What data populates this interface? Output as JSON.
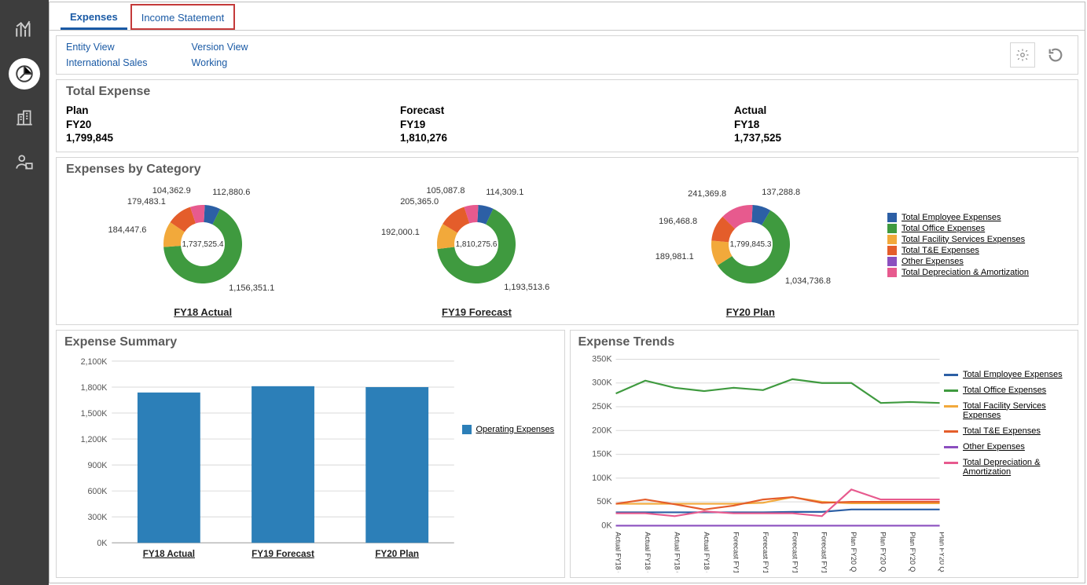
{
  "colors": {
    "employee": "#2c5fa5",
    "office": "#3f9a3f",
    "facility": "#f2a93b",
    "tne": "#e45d2b",
    "other": "#8b4fbf",
    "dep": "#e75a8e",
    "bar": "#2c7fb8",
    "grid": "#d8d8d8",
    "axis": "#999999"
  },
  "tabs": [
    {
      "id": "expenses",
      "label": "Expenses",
      "active": true
    },
    {
      "id": "income",
      "label": "Income Statement",
      "highlighted": true
    }
  ],
  "pov": {
    "entity_label": "Entity View",
    "entity_value": "International Sales",
    "version_label": "Version View",
    "version_value": "Working"
  },
  "total_expense": {
    "title": "Total Expense",
    "columns": [
      {
        "heading": "Plan",
        "period": "FY20",
        "value": "1,799,845"
      },
      {
        "heading": "Forecast",
        "period": "FY19",
        "value": "1,810,276"
      },
      {
        "heading": "Actual",
        "period": "FY18",
        "value": "1,737,525"
      }
    ]
  },
  "donut_section": {
    "title": "Expenses by Category",
    "legend": [
      {
        "label": "Total Employee Expenses",
        "color_key": "employee"
      },
      {
        "label": "Total Office Expenses",
        "color_key": "office"
      },
      {
        "label": "Total Facility Services Expenses",
        "color_key": "facility"
      },
      {
        "label": "Total T&E Expenses",
        "color_key": "tne"
      },
      {
        "label": "Other Expenses",
        "color_key": "other"
      },
      {
        "label": "Total Depreciation & Amortization",
        "color_key": "dep"
      }
    ],
    "charts": [
      {
        "caption": "FY18 Actual",
        "center": "1,737,525.4",
        "slices": [
          {
            "value": 112880.6,
            "label": "112,880.6",
            "color_key": "employee"
          },
          {
            "value": 1156351.1,
            "label": "1,156,351.1",
            "color_key": "office"
          },
          {
            "value": 184447.6,
            "label": "184,447.6",
            "color_key": "facility"
          },
          {
            "value": 179483.1,
            "label": "179,483.1",
            "color_key": "tne"
          },
          {
            "value": 0,
            "label": "",
            "color_key": "other"
          },
          {
            "value": 104362.9,
            "label": "104,362.9",
            "color_key": "dep"
          }
        ]
      },
      {
        "caption": "FY19 Forecast",
        "center": "1,810,275.6",
        "slices": [
          {
            "value": 114309.1,
            "label": "114,309.1",
            "color_key": "employee"
          },
          {
            "value": 1193513.6,
            "label": "1,193,513.6",
            "color_key": "office"
          },
          {
            "value": 192000.1,
            "label": "192,000.1",
            "color_key": "facility"
          },
          {
            "value": 205365.0,
            "label": "205,365.0",
            "color_key": "tne"
          },
          {
            "value": 0,
            "label": "",
            "color_key": "other"
          },
          {
            "value": 105087.8,
            "label": "105,087.8",
            "color_key": "dep"
          }
        ]
      },
      {
        "caption": "FY20 Plan",
        "center": "1,799,845.3",
        "slices": [
          {
            "value": 137288.8,
            "label": "137,288.8",
            "color_key": "employee"
          },
          {
            "value": 1034736.8,
            "label": "1,034,736.8",
            "color_key": "office"
          },
          {
            "value": 189981.1,
            "label": "189,981.1",
            "color_key": "facility"
          },
          {
            "value": 196468.8,
            "label": "196,468.8",
            "color_key": "tne"
          },
          {
            "value": 0,
            "label": "",
            "color_key": "other"
          },
          {
            "value": 241369.8,
            "label": "241,369.8",
            "color_key": "dep"
          }
        ]
      }
    ]
  },
  "bar_chart": {
    "title": "Expense Summary",
    "ylim": [
      0,
      2100000
    ],
    "ytick_step": 300000,
    "ytick_labels": [
      "0K",
      "300K",
      "600K",
      "900K",
      "1,200K",
      "1,500K",
      "1,800K",
      "2,100K"
    ],
    "categories": [
      "FY18 Actual",
      "FY19 Forecast",
      "FY20 Plan"
    ],
    "values": [
      1737525,
      1810276,
      1799845
    ],
    "legend_label": "Operating Expenses"
  },
  "line_chart": {
    "title": "Expense Trends",
    "ylim": [
      0,
      350000
    ],
    "ytick_step": 50000,
    "ytick_labels": [
      "0K",
      "50K",
      "100K",
      "150K",
      "200K",
      "250K",
      "300K",
      "350K"
    ],
    "categories": [
      "Actual FY18 Q1",
      "Actual FY18 Q2",
      "Actual FY18 Q3",
      "Actual FY18 Q4",
      "Forecast FY19 Q1",
      "Forecast FY19 Q2",
      "Forecast FY19 Q3",
      "Forecast FY19 Q4",
      "Plan FY20 Q1",
      "Plan FY20 Q2",
      "Plan FY20 Q3",
      "Plan FY20 Q4"
    ],
    "series": [
      {
        "name": "Total Employee Expenses",
        "color_key": "employee",
        "values": [
          28000,
          28000,
          28000,
          28000,
          28000,
          28000,
          29000,
          29000,
          34000,
          34000,
          34000,
          34000
        ]
      },
      {
        "name": "Total Office Expenses",
        "color_key": "office",
        "values": [
          278000,
          305000,
          290000,
          283000,
          290000,
          285000,
          308000,
          300000,
          300000,
          258000,
          260000,
          258000
        ]
      },
      {
        "name": "Total Facility Services Expenses",
        "color_key": "facility",
        "values": [
          46000,
          46000,
          46000,
          46000,
          46000,
          48000,
          60000,
          50000,
          47000,
          47000,
          47000,
          47000
        ]
      },
      {
        "name": "Total T&E Expenses",
        "color_key": "tne",
        "values": [
          46000,
          55000,
          45000,
          34000,
          42000,
          55000,
          60000,
          48000,
          50000,
          50000,
          50000,
          50000
        ]
      },
      {
        "name": "Other Expenses",
        "color_key": "other",
        "values": [
          0,
          0,
          0,
          0,
          0,
          0,
          0,
          0,
          0,
          0,
          0,
          0
        ]
      },
      {
        "name": "Total Depreciation & Amortization",
        "color_key": "dep",
        "values": [
          26000,
          26000,
          20000,
          30000,
          26000,
          26000,
          26000,
          20000,
          76000,
          55000,
          55000,
          55000
        ]
      }
    ]
  }
}
